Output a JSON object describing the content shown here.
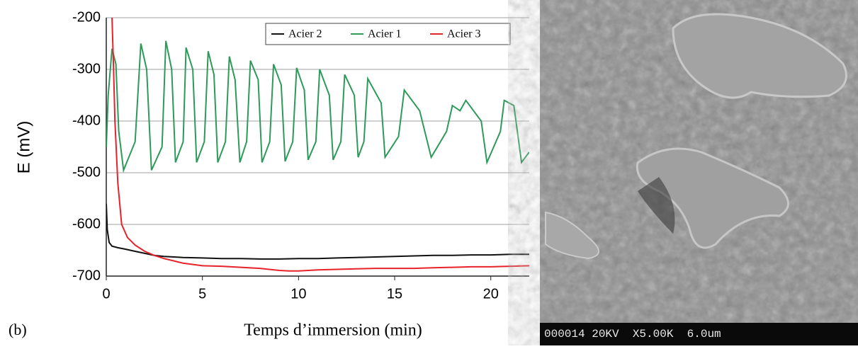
{
  "chart_data": {
    "type": "line",
    "panel_label": "(b)",
    "ylabel": "E (mV)",
    "xlabel": "Temps d’immersion (min)",
    "xlim": [
      0,
      22
    ],
    "xticks": [
      0,
      5,
      10,
      15,
      20
    ],
    "ylim": [
      -700,
      -200
    ],
    "yticks": [
      -200,
      -300,
      -400,
      -500,
      -600,
      -700
    ],
    "grid": true,
    "legend": "upper right",
    "series": [
      {
        "name": "Acier 2",
        "color": "#111111",
        "x": [
          0,
          0.05,
          0.15,
          0.3,
          0.6,
          1,
          1.5,
          2,
          2.5,
          3,
          4,
          5,
          6,
          7,
          8,
          9,
          10,
          11,
          12,
          13,
          14,
          15,
          16,
          17,
          18,
          19,
          20,
          21,
          22
        ],
        "values": [
          -560,
          -610,
          -635,
          -642,
          -645,
          -648,
          -652,
          -656,
          -660,
          -662,
          -664,
          -665,
          -666,
          -666,
          -667,
          -667,
          -666,
          -666,
          -665,
          -664,
          -663,
          -662,
          -661,
          -660,
          -660,
          -659,
          -659,
          -658,
          -658
        ]
      },
      {
        "name": "Acier 1",
        "color": "#2e9a5a",
        "x": [
          0,
          0.1,
          0.3,
          0.5,
          0.65,
          0.9,
          1.5,
          1.8,
          2.1,
          2.35,
          2.9,
          3.1,
          3.4,
          3.6,
          4.0,
          4.15,
          4.5,
          4.7,
          5.1,
          5.3,
          5.6,
          5.8,
          6.2,
          6.4,
          6.7,
          6.95,
          7.3,
          7.5,
          7.9,
          8.1,
          8.5,
          8.7,
          9.1,
          9.3,
          9.7,
          9.9,
          10.3,
          10.5,
          10.9,
          11.1,
          11.6,
          11.8,
          12.2,
          12.4,
          12.9,
          13.1,
          13.4,
          13.6,
          14.3,
          14.5,
          15.2,
          15.5,
          16.3,
          16.9,
          17.7,
          18.0,
          18.4,
          18.7,
          19.5,
          19.8,
          20.5,
          20.7,
          21.2,
          21.6,
          22
        ],
        "values": [
          -450,
          -350,
          -260,
          -290,
          -420,
          -495,
          -440,
          -250,
          -300,
          -495,
          -450,
          -245,
          -300,
          -480,
          -440,
          -258,
          -300,
          -480,
          -440,
          -265,
          -310,
          -480,
          -440,
          -275,
          -320,
          -480,
          -440,
          -283,
          -320,
          -480,
          -440,
          -290,
          -330,
          -478,
          -440,
          -297,
          -340,
          -475,
          -440,
          -300,
          -350,
          -475,
          -440,
          -310,
          -350,
          -470,
          -440,
          -318,
          -365,
          -470,
          -430,
          -340,
          -380,
          -470,
          -420,
          -370,
          -380,
          -360,
          -400,
          -480,
          -420,
          -360,
          -370,
          -480,
          -460
        ]
      },
      {
        "name": "Acier 3",
        "color": "#e8222a",
        "x": [
          0.3,
          0.38,
          0.45,
          0.6,
          0.8,
          1.1,
          1.5,
          2,
          2.5,
          3,
          4,
          5,
          6,
          7,
          8,
          9,
          9.5,
          10,
          11,
          12,
          13,
          14,
          15,
          16,
          17,
          18,
          19,
          20,
          21,
          22
        ],
        "values": [
          -200,
          -300,
          -400,
          -520,
          -600,
          -625,
          -640,
          -652,
          -660,
          -666,
          -675,
          -680,
          -681,
          -683,
          -685,
          -689,
          -690,
          -690,
          -688,
          -687,
          -686,
          -685,
          -685,
          -685,
          -684,
          -683,
          -682,
          -682,
          -681,
          -680
        ]
      }
    ]
  },
  "sem_image": {
    "caption": "000014 20KV  X5.00K  6.0um"
  }
}
